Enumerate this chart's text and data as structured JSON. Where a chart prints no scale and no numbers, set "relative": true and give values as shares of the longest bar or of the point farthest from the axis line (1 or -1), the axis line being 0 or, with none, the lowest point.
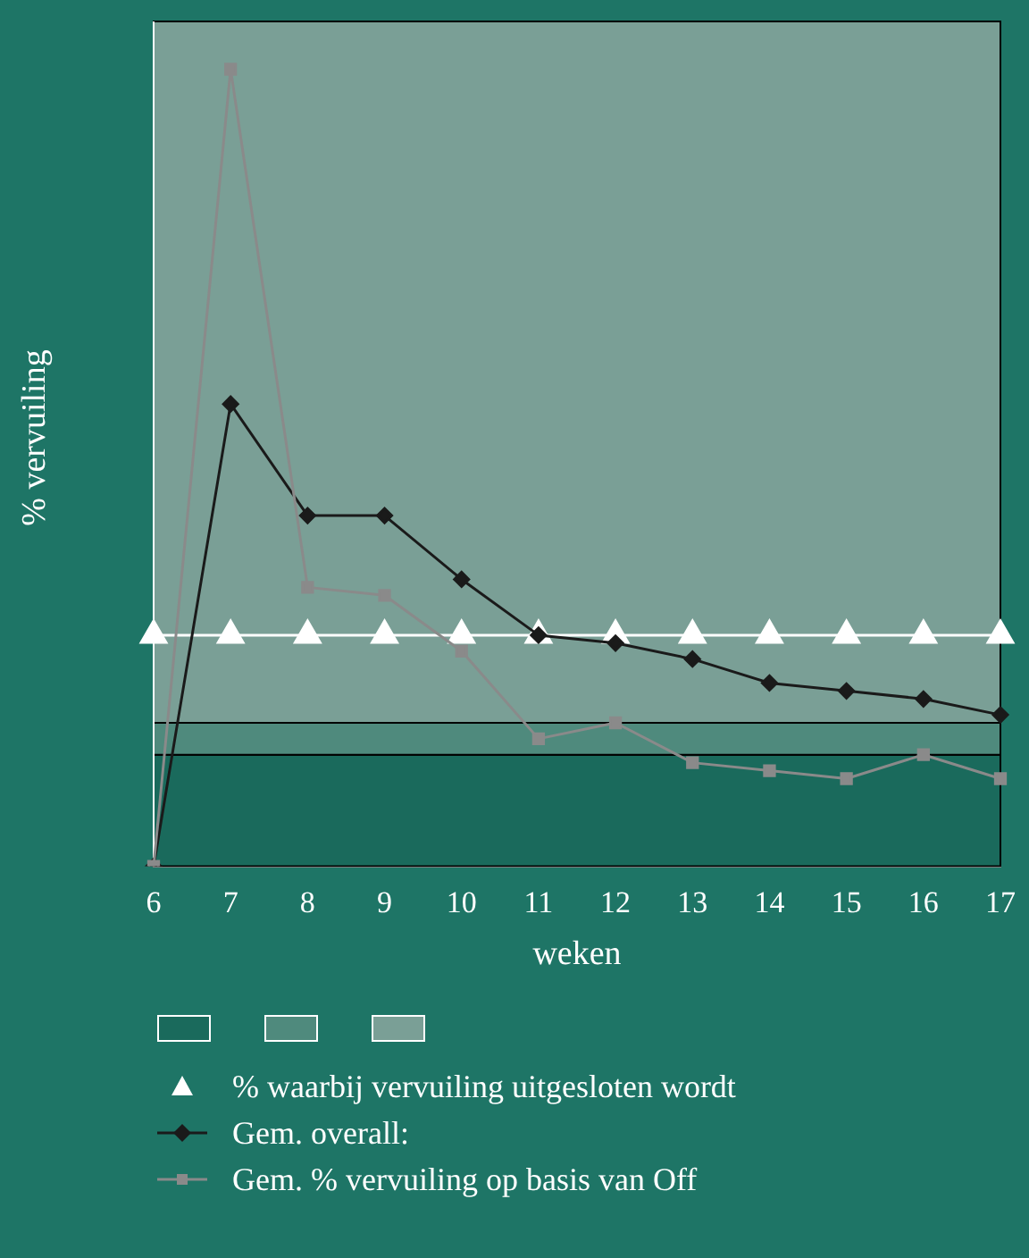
{
  "chart_data": {
    "type": "line",
    "relative": true,
    "xlabel": "weken",
    "ylabel": "% vervuiling",
    "categories": [
      "6",
      "7",
      "8",
      "9",
      "10",
      "11",
      "12",
      "13",
      "14",
      "15",
      "16",
      "17"
    ],
    "series": [
      {
        "name": "% waarbij vervuiling uitgesloten wordt",
        "color": "#ffffff",
        "marker": "triangle",
        "values": [
          0.29,
          0.29,
          0.29,
          0.29,
          0.29,
          0.29,
          0.29,
          0.29,
          0.29,
          0.29,
          0.29,
          0.29
        ]
      },
      {
        "name": "Gem. overall:",
        "color": "#1a1a1a",
        "marker": "diamond",
        "values": [
          0,
          0.58,
          0.44,
          0.44,
          0.36,
          0.29,
          0.28,
          0.26,
          0.23,
          0.22,
          0.21,
          0.19
        ]
      },
      {
        "name": "Gem. % vervuiling op basis van Off",
        "color": "#8a8a8a",
        "marker": "square",
        "values": [
          0,
          1,
          0.35,
          0.34,
          0.27,
          0.16,
          0.18,
          0.13,
          0.12,
          0.11,
          0.14,
          0.11
        ]
      }
    ],
    "bands": [
      {
        "axis": "y",
        "from": 0,
        "to": 0.14,
        "color": "#1a6a5c"
      },
      {
        "axis": "y",
        "from": 0.14,
        "to": 0.18,
        "color": "#4f8a7d"
      },
      {
        "axis": "y",
        "from": 0.18,
        "to": 1.06,
        "color": "#7a9f96"
      }
    ],
    "legend": "bottom"
  }
}
